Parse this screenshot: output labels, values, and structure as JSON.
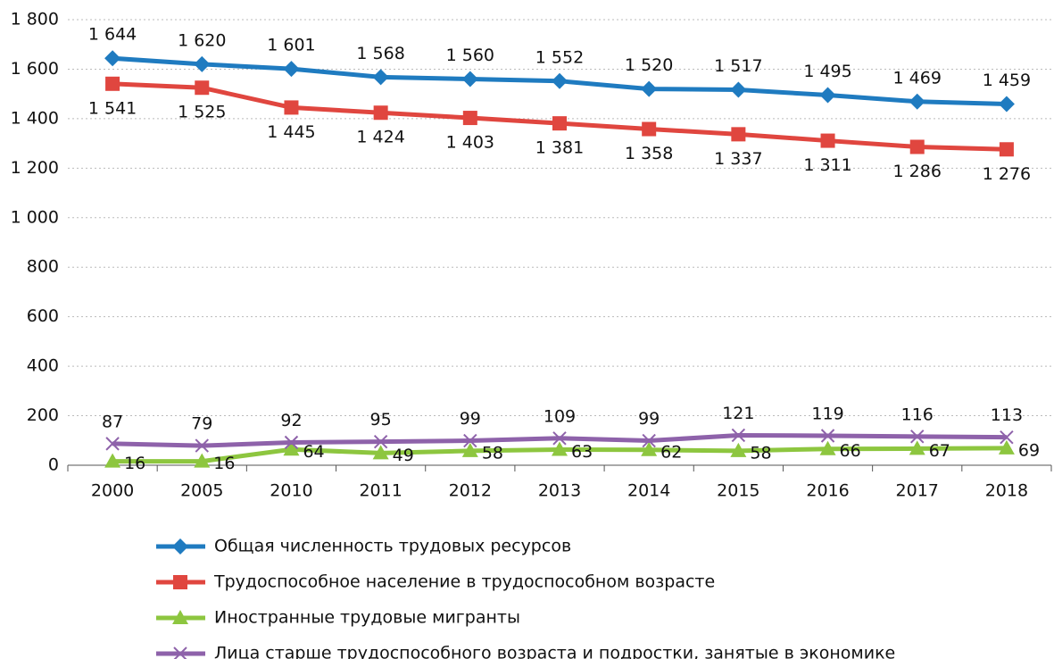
{
  "chart_data": {
    "type": "line",
    "categories": [
      "2000",
      "2005",
      "2010",
      "2011",
      "2012",
      "2013",
      "2014",
      "2015",
      "2016",
      "2017",
      "2018"
    ],
    "ylim": [
      0,
      1800
    ],
    "yticks": [
      0,
      200,
      400,
      600,
      800,
      {
        "value": 1000,
        "label": "1 000"
      },
      {
        "value": 1200,
        "label": "1 200"
      },
      {
        "value": 1400,
        "label": "1 400"
      },
      {
        "value": 1600,
        "label": "1 600"
      },
      {
        "value": 1800,
        "label": "1 800"
      }
    ],
    "grid": true,
    "legend": "bottom",
    "series": [
      {
        "name": "Общая численность трудовых ресурсов",
        "color": "#1f7bc0",
        "marker": "diamond",
        "values": [
          1644,
          1620,
          1601,
          1568,
          1560,
          1552,
          1520,
          1517,
          1495,
          1469,
          1459
        ],
        "value_labels": [
          "1 644",
          "1 620",
          "1 601",
          "1 568",
          "1 560",
          "1 552",
          "1 520",
          "1 517",
          "1 495",
          "1 469",
          "1 459"
        ]
      },
      {
        "name": "Трудоспособное население в трудоспособном возрасте",
        "color": "#e0463f",
        "marker": "square",
        "values": [
          1541,
          1525,
          1445,
          1424,
          1403,
          1381,
          1358,
          1337,
          1311,
          1286,
          1276
        ],
        "value_labels": [
          "1 541",
          "1 525",
          "1 445",
          "1 424",
          "1 403",
          "1 381",
          "1 358",
          "1 337",
          "1 311",
          "1 286",
          "1 276"
        ]
      },
      {
        "name": "Иностранные трудовые мигранты",
        "color": "#8dc63f",
        "marker": "triangle",
        "values": [
          16,
          16,
          64,
          49,
          58,
          63,
          62,
          58,
          66,
          67,
          69
        ]
      },
      {
        "name": "Лица старше трудоспособного возраста и подростки, занятые в экономике",
        "color": "#8e62aa",
        "marker": "x",
        "values": [
          87,
          79,
          92,
          95,
          99,
          109,
          99,
          121,
          119,
          116,
          113
        ]
      }
    ]
  }
}
